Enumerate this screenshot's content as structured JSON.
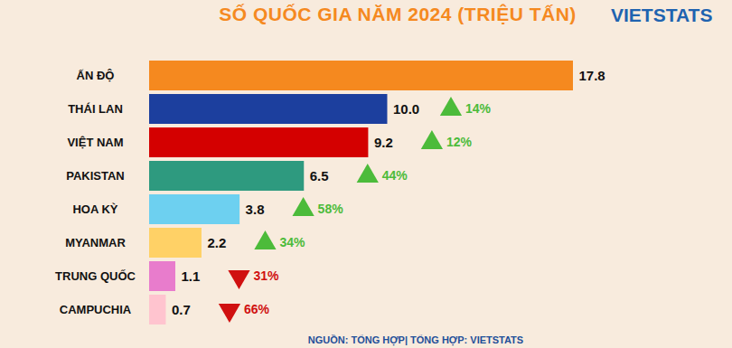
{
  "chart_data": {
    "type": "bar",
    "title": "SỐ QUỐC GIA NĂM 2024 (TRIỆU TẤN)",
    "brand": "VIETSTATS",
    "source": "NGUỒN: TỔNG HỢP| TỔNG HỢP: VIETSTATS",
    "orientation": "horizontal",
    "categories": [
      "ẤN ĐỘ",
      "THÁI LAN",
      "VIỆT NAM",
      "PAKISTAN",
      "HOA KỲ",
      "MYANMAR",
      "TRUNG QUỐC",
      "CAMPUCHIA"
    ],
    "values": [
      17.8,
      10.0,
      9.2,
      6.5,
      3.8,
      2.2,
      1.1,
      0.7
    ],
    "value_labels": [
      "17.8",
      "10.0",
      "9.2",
      "6.5",
      "3.8",
      "2.2",
      "1.1",
      "0.7"
    ],
    "colors": [
      "#f5891f",
      "#1c3f9e",
      "#d40000",
      "#2e9a7f",
      "#6dd0f0",
      "#ffd166",
      "#e87ccc",
      "#ffc4cf"
    ],
    "data_labels": true,
    "tick_labels": "y",
    "changes": [
      null,
      14,
      12,
      44,
      58,
      34,
      -31,
      -66
    ],
    "change_labels": [
      null,
      "14%",
      "12%",
      "44%",
      "58%",
      "34%",
      "31%",
      "66%"
    ]
  }
}
